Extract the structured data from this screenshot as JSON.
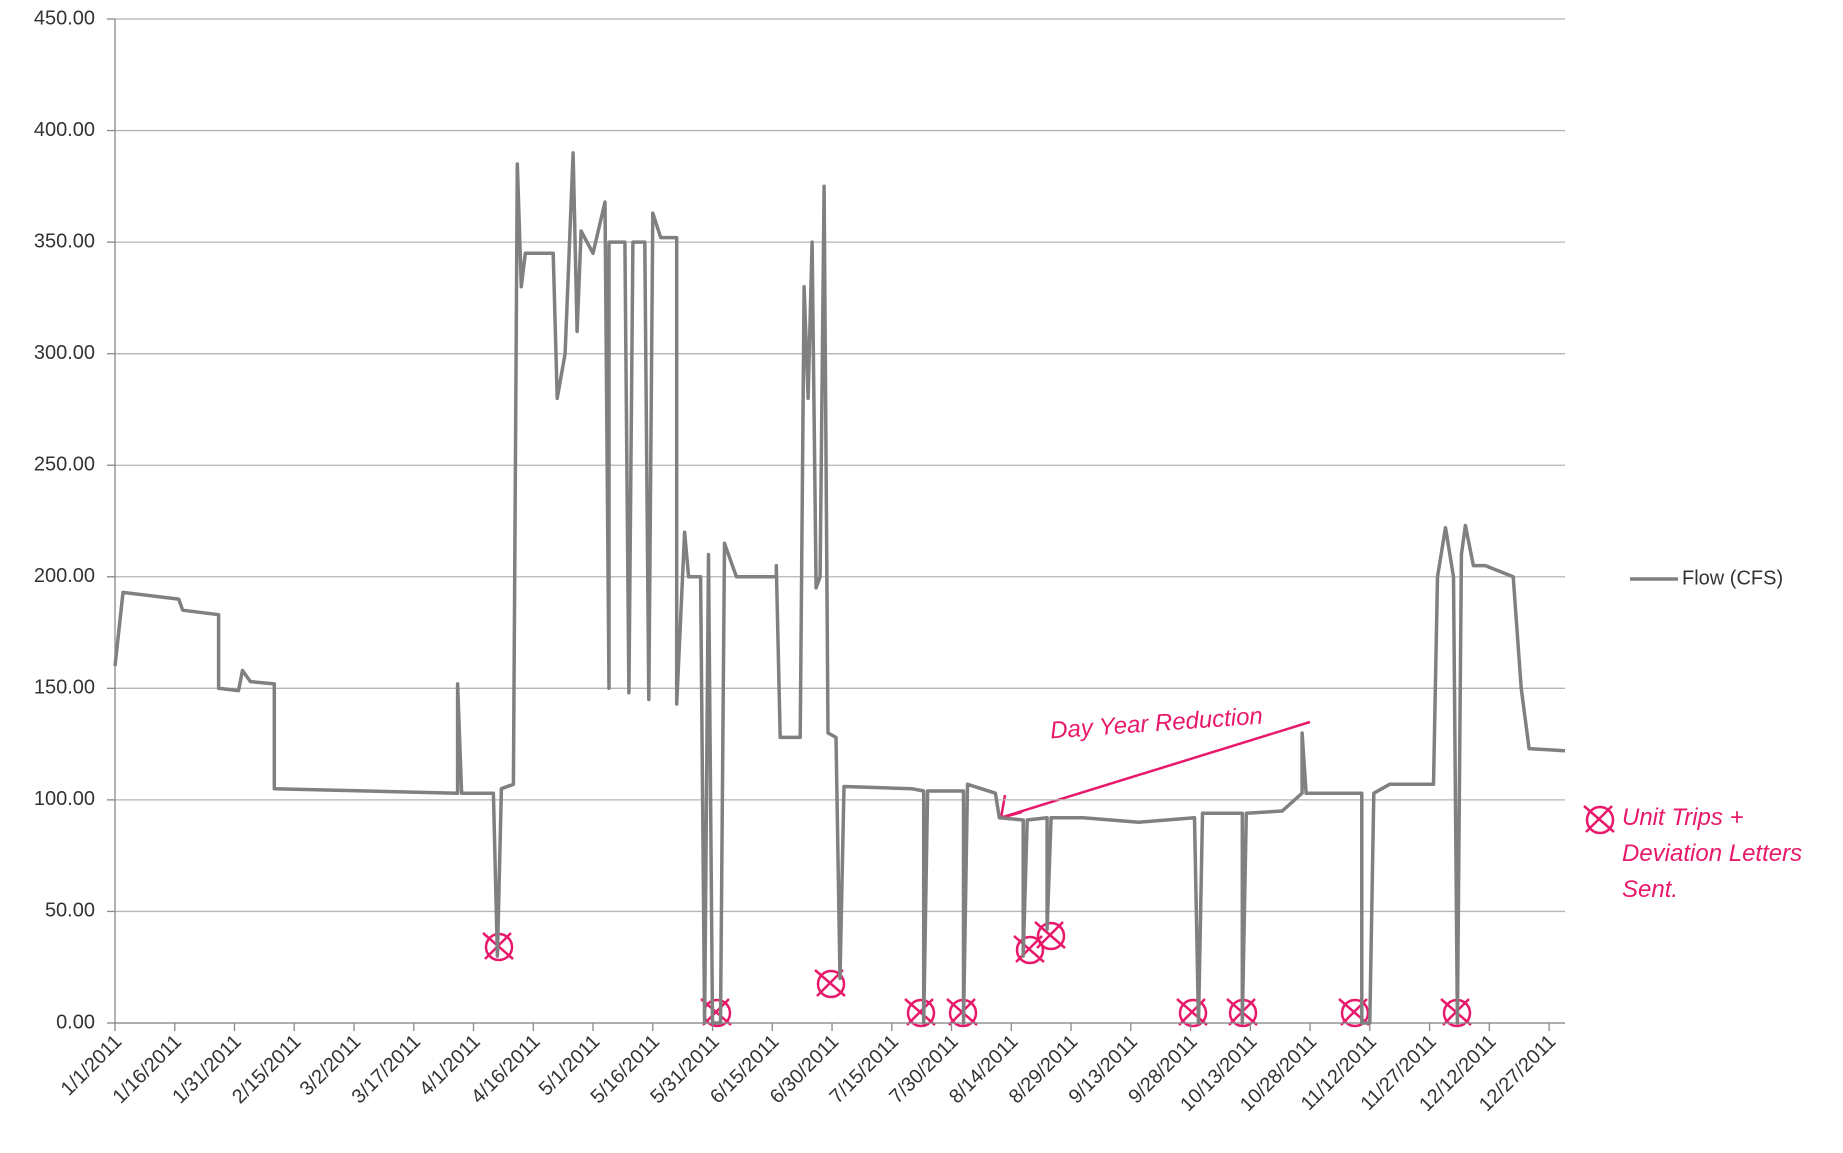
{
  "chart_data": {
    "type": "line",
    "x": [
      "1/1/2011",
      "1/3/2011",
      "1/17/2011",
      "1/18/2011",
      "1/27/2011",
      "1/27/2011",
      "2/1/2011",
      "2/2/2011",
      "2/4/2011",
      "2/10/2011",
      "2/10/2011",
      "3/28/2011",
      "3/28/2011",
      "3/29/2011",
      "4/6/2011",
      "4/7/2011",
      "4/8/2011",
      "4/11/2011",
      "4/12/2011",
      "4/13/2011",
      "4/14/2011",
      "4/21/2011",
      "4/22/2011",
      "4/24/2011",
      "4/26/2011",
      "4/27/2011",
      "4/28/2011",
      "5/1/2011",
      "5/4/2011",
      "5/5/2011",
      "5/5/2011",
      "5/9/2011",
      "5/10/2011",
      "5/11/2011",
      "5/14/2011",
      "5/15/2011",
      "5/16/2011",
      "5/18/2011",
      "5/22/2011",
      "5/22/2011",
      "5/24/2011",
      "5/25/2011",
      "5/28/2011",
      "5/29/2011",
      "5/30/2011",
      "5/31/2011",
      "6/2/2011",
      "6/3/2011",
      "6/6/2011",
      "6/16/2011",
      "6/16/2011",
      "6/17/2011",
      "6/22/2011",
      "6/23/2011",
      "6/24/2011",
      "6/25/2011",
      "6/26/2011",
      "6/27/2011",
      "6/28/2011",
      "6/29/2011",
      "7/1/2011",
      "7/2/2011",
      "7/3/2011",
      "7/20/2011",
      "7/23/2011",
      "7/23/2011",
      "7/24/2011",
      "8/2/2011",
      "8/2/2011",
      "8/3/2011",
      "8/10/2011",
      "8/11/2011",
      "8/17/2011",
      "8/17/2011",
      "8/18/2011",
      "8/23/2011",
      "8/23/2011",
      "8/24/2011",
      "9/1/2011",
      "9/15/2011",
      "9/29/2011",
      "9/30/2011",
      "10/1/2011",
      "10/11/2011",
      "10/11/2011",
      "10/12/2011",
      "10/21/2011",
      "10/26/2011",
      "10/26/2011",
      "10/27/2011",
      "11/10/2011",
      "11/10/2011",
      "11/12/2011",
      "11/13/2011",
      "11/17/2011",
      "11/28/2011",
      "11/29/2011",
      "12/1/2011",
      "12/3/2011",
      "12/4/2011",
      "12/5/2011",
      "12/6/2011",
      "12/8/2011",
      "12/11/2011",
      "12/18/2011",
      "12/20/2011",
      "12/22/2011",
      "12/31/2011"
    ],
    "series": [
      {
        "name": "Flow (CFS)",
        "color": "#808080",
        "values": [
          160,
          193,
          190,
          185,
          183,
          150,
          149,
          158,
          153,
          152,
          105,
          103,
          152,
          103,
          103,
          30,
          105,
          107,
          385,
          330,
          345,
          345,
          280,
          300,
          390,
          310,
          355,
          345,
          368,
          150,
          350,
          350,
          148,
          350,
          350,
          145,
          363,
          352,
          352,
          143,
          220,
          200,
          200,
          0,
          210,
          0,
          0,
          215,
          200,
          200,
          205,
          128,
          128,
          330,
          280,
          350,
          195,
          200,
          375,
          130,
          128,
          20,
          106,
          105,
          104,
          0,
          104,
          104,
          0,
          107,
          103,
          92,
          91,
          30,
          91,
          92,
          42,
          92,
          92,
          90,
          92,
          0,
          94,
          94,
          0,
          94,
          95,
          103,
          130,
          103,
          103,
          0,
          0,
          103,
          107,
          107,
          200,
          222,
          200,
          0,
          210,
          223,
          205,
          205,
          200,
          150,
          123,
          122
        ]
      }
    ],
    "xlim": [
      "1/1/2011",
      "12/31/2011"
    ],
    "xticks": [
      "1/1/2011",
      "1/16/2011",
      "1/31/2011",
      "2/15/2011",
      "3/2/2011",
      "3/17/2011",
      "4/1/2011",
      "4/16/2011",
      "5/1/2011",
      "5/16/2011",
      "5/31/2011",
      "6/15/2011",
      "6/30/2011",
      "7/15/2011",
      "7/30/2011",
      "8/14/2011",
      "8/29/2011",
      "9/13/2011",
      "9/28/2011",
      "10/13/2011",
      "10/28/2011",
      "11/12/2011",
      "11/27/2011",
      "12/12/2011",
      "12/27/2011"
    ],
    "ylim": [
      0,
      450
    ],
    "yticks": [
      {
        "value": 0,
        "label": "0.00"
      },
      {
        "value": 50,
        "label": "50.00"
      },
      {
        "value": 100,
        "label": "100.00"
      },
      {
        "value": 150,
        "label": "150.00"
      },
      {
        "value": 200,
        "label": "200.00"
      },
      {
        "value": 250,
        "label": "250.00"
      },
      {
        "value": 300,
        "label": "300.00"
      },
      {
        "value": 350,
        "label": "350.00"
      },
      {
        "value": 400,
        "label": "400.00"
      },
      {
        "value": 450,
        "label": "450.00"
      }
    ],
    "grid": true,
    "legend": "right",
    "annotations": [
      "Day Year Reduction",
      "Unit Trips + Deviation Letters Sent."
    ]
  }
}
